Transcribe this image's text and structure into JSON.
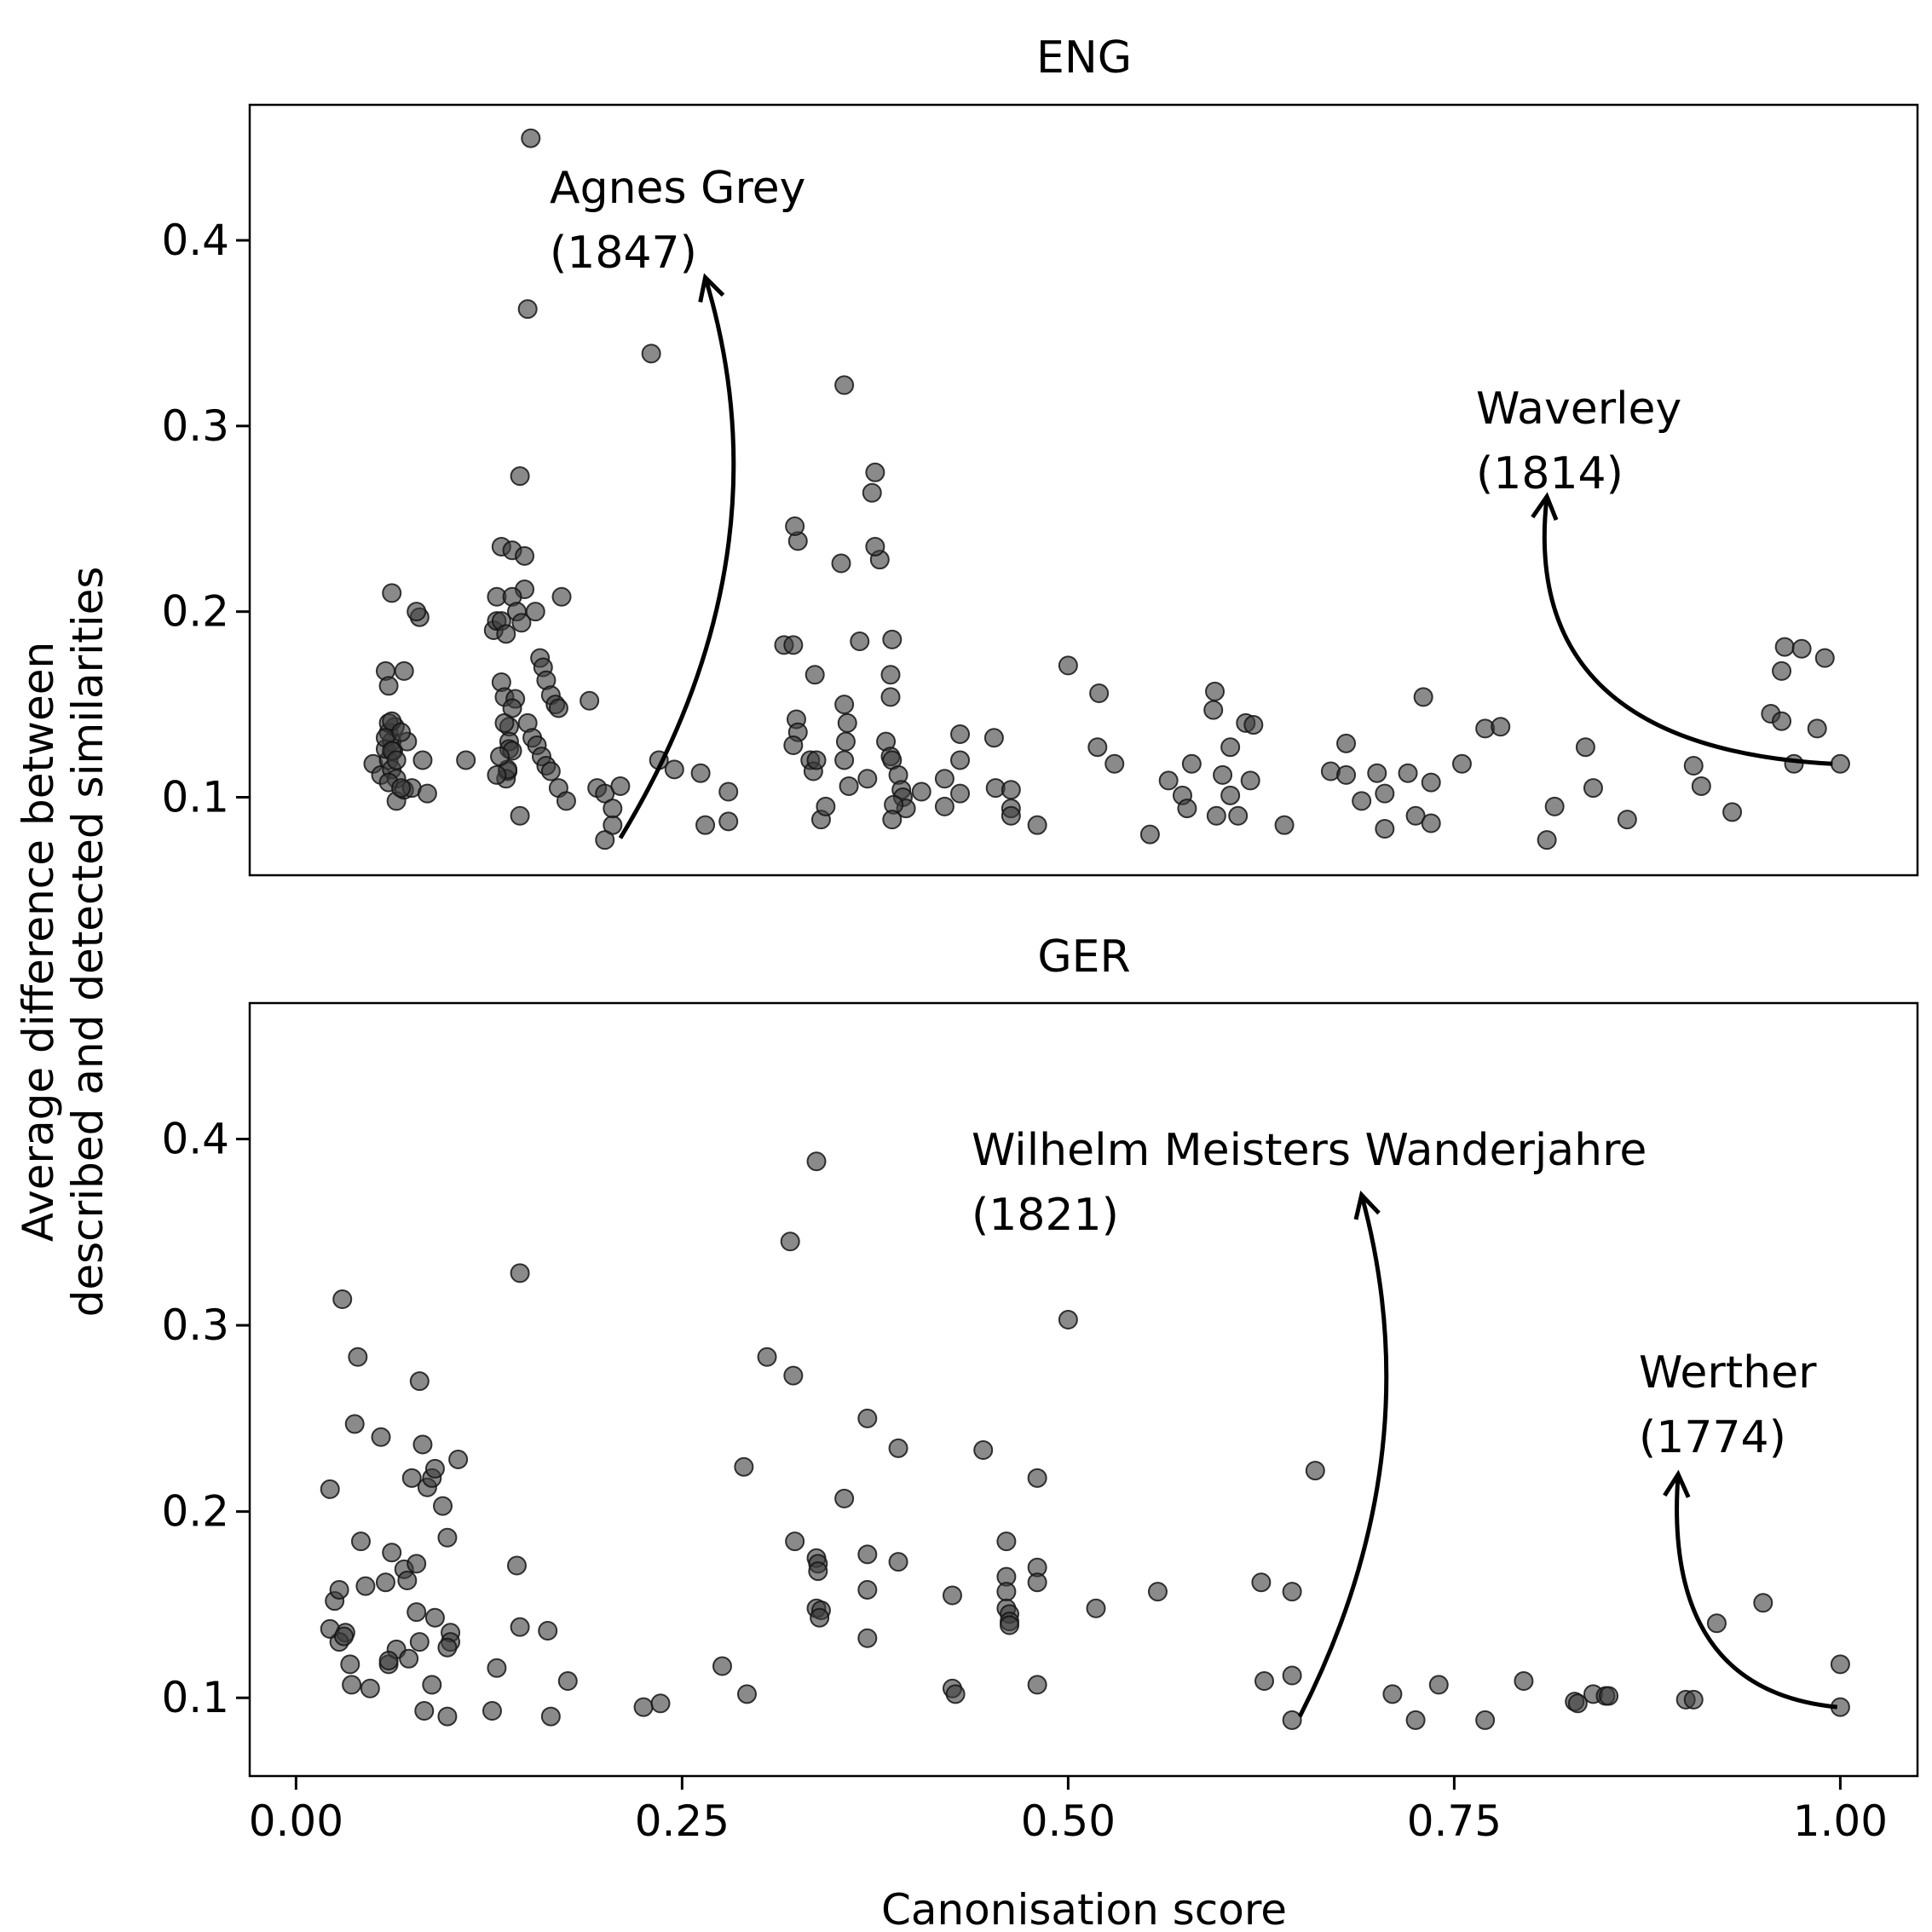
{
  "chart_data": [
    {
      "type": "scatter",
      "title": "ENG",
      "xlabel": "Canonisation score",
      "ylabel": [
        "Average difference between",
        "described and detected similarities"
      ],
      "xlim": [
        -0.03,
        1.05
      ],
      "ylim": [
        0.058,
        0.473
      ],
      "yticks": [
        0.1,
        0.2,
        0.3,
        0.4
      ],
      "ytick_labels": [
        "0.1",
        "0.2",
        "0.3",
        "0.4"
      ],
      "grid": false,
      "annotations": [
        {
          "lines": [
            "Agnes Grey",
            "(1847)"
          ],
          "point_x": 0.21,
          "point_y": 0.078,
          "arrow_to_x": 0.265,
          "arrow_to_y": 0.38
        },
        {
          "lines": [
            "Waverley",
            "(1814)"
          ],
          "point_x": 0.995,
          "point_y": 0.118,
          "arrow_to_x": 0.81,
          "arrow_to_y": 0.262
        }
      ],
      "x": [
        0.05,
        0.055,
        0.06,
        0.058,
        0.062,
        0.06,
        0.064,
        0.06,
        0.062,
        0.058,
        0.063,
        0.062,
        0.065,
        0.06,
        0.058,
        0.062,
        0.07,
        0.065,
        0.07,
        0.075,
        0.072,
        0.068,
        0.08,
        0.078,
        0.082,
        0.085,
        0.06,
        0.062,
        0.065,
        0.068,
        0.11,
        0.128,
        0.13,
        0.133,
        0.135,
        0.138,
        0.138,
        0.137,
        0.138,
        0.136,
        0.14,
        0.137,
        0.142,
        0.135,
        0.132,
        0.13,
        0.133,
        0.14,
        0.145,
        0.148,
        0.15,
        0.152,
        0.155,
        0.158,
        0.16,
        0.162,
        0.165,
        0.168,
        0.17,
        0.172,
        0.13,
        0.133,
        0.136,
        0.14,
        0.143,
        0.146,
        0.148,
        0.15,
        0.153,
        0.156,
        0.159,
        0.162,
        0.165,
        0.17,
        0.175,
        0.145,
        0.14,
        0.19,
        0.195,
        0.2,
        0.205,
        0.21,
        0.205,
        0.2,
        0.23,
        0.235,
        0.245,
        0.262,
        0.265,
        0.28,
        0.28,
        0.316,
        0.322,
        0.325,
        0.323,
        0.324,
        0.325,
        0.322,
        0.333,
        0.335,
        0.337,
        0.336,
        0.34,
        0.343,
        0.355,
        0.353,
        0.355,
        0.357,
        0.356,
        0.355,
        0.358,
        0.365,
        0.37,
        0.375,
        0.373,
        0.378,
        0.375,
        0.382,
        0.386,
        0.385,
        0.385,
        0.385,
        0.386,
        0.39,
        0.392,
        0.393,
        0.395,
        0.387,
        0.386,
        0.405,
        0.42,
        0.42,
        0.43,
        0.43,
        0.43,
        0.452,
        0.453,
        0.463,
        0.463,
        0.463,
        0.48,
        0.5,
        0.519,
        0.52,
        0.53,
        0.553,
        0.565,
        0.574,
        0.577,
        0.58,
        0.594,
        0.595,
        0.596,
        0.6,
        0.605,
        0.605,
        0.61,
        0.615,
        0.618,
        0.62,
        0.64,
        0.67,
        0.68,
        0.68,
        0.69,
        0.7,
        0.705,
        0.705,
        0.72,
        0.725,
        0.73,
        0.735,
        0.735,
        0.755,
        0.77,
        0.78,
        0.81,
        0.815,
        0.835,
        0.84,
        0.862,
        0.905,
        0.91,
        0.93,
        0.955,
        0.962,
        0.962,
        0.964,
        0.97,
        0.975,
        0.985,
        0.99,
        1.0
      ],
      "y": [
        0.118,
        0.112,
        0.12,
        0.126,
        0.13,
        0.135,
        0.138,
        0.14,
        0.141,
        0.132,
        0.125,
        0.115,
        0.11,
        0.108,
        0.168,
        0.21,
        0.168,
        0.098,
        0.104,
        0.105,
        0.13,
        0.105,
        0.197,
        0.2,
        0.12,
        0.102,
        0.16,
        0.125,
        0.12,
        0.135,
        0.12,
        0.19,
        0.195,
        0.162,
        0.154,
        0.138,
        0.13,
        0.114,
        0.126,
        0.11,
        0.125,
        0.115,
        0.153,
        0.14,
        0.122,
        0.112,
        0.235,
        0.233,
        0.273,
        0.212,
        0.363,
        0.455,
        0.2,
        0.175,
        0.17,
        0.163,
        0.155,
        0.15,
        0.148,
        0.208,
        0.208,
        0.195,
        0.188,
        0.208,
        0.2,
        0.194,
        0.23,
        0.14,
        0.132,
        0.128,
        0.122,
        0.117,
        0.114,
        0.105,
        0.098,
        0.09,
        0.148,
        0.152,
        0.105,
        0.102,
        0.085,
        0.106,
        0.094,
        0.077,
        0.339,
        0.12,
        0.115,
        0.113,
        0.085,
        0.103,
        0.087,
        0.182,
        0.182,
        0.238,
        0.246,
        0.142,
        0.135,
        0.128,
        0.12,
        0.114,
        0.12,
        0.166,
        0.088,
        0.095,
        0.322,
        0.226,
        0.15,
        0.14,
        0.13,
        0.12,
        0.106,
        0.184,
        0.11,
        0.275,
        0.264,
        0.228,
        0.235,
        0.13,
        0.185,
        0.166,
        0.154,
        0.122,
        0.12,
        0.112,
        0.104,
        0.1,
        0.094,
        0.096,
        0.088,
        0.103,
        0.11,
        0.095,
        0.134,
        0.12,
        0.102,
        0.132,
        0.105,
        0.104,
        0.094,
        0.09,
        0.085,
        0.171,
        0.127,
        0.156,
        0.118,
        0.08,
        0.109,
        0.101,
        0.094,
        0.118,
        0.147,
        0.157,
        0.09,
        0.112,
        0.101,
        0.127,
        0.09,
        0.14,
        0.109,
        0.139,
        0.085,
        0.114,
        0.112,
        0.129,
        0.098,
        0.113,
        0.102,
        0.083,
        0.113,
        0.09,
        0.154,
        0.108,
        0.086,
        0.118,
        0.137,
        0.138,
        0.077,
        0.095,
        0.127,
        0.105,
        0.088,
        0.117,
        0.106,
        0.092,
        0.145,
        0.168,
        0.141,
        0.181,
        0.118,
        0.18,
        0.137,
        0.175,
        0.118
      ]
    },
    {
      "type": "scatter",
      "title": "GER",
      "xlabel": "Canonisation score",
      "xlim": [
        -0.03,
        1.05
      ],
      "ylim": [
        0.058,
        0.473
      ],
      "xticks": [
        0.0,
        0.25,
        0.5,
        0.75,
        1.0
      ],
      "xtick_labels": [
        "0.00",
        "0.25",
        "0.50",
        "0.75",
        "1.00"
      ],
      "yticks": [
        0.1,
        0.2,
        0.3,
        0.4
      ],
      "ytick_labels": [
        "0.1",
        "0.2",
        "0.3",
        "0.4"
      ],
      "grid": false,
      "annotations": [
        {
          "lines": [
            "Wilhelm Meisters Wanderjahre",
            "(1821)"
          ],
          "point_x": 0.65,
          "point_y": 0.09,
          "arrow_to_x": 0.69,
          "arrow_to_y": 0.37
        },
        {
          "lines": [
            "Werther",
            "(1774)"
          ],
          "point_x": 0.998,
          "point_y": 0.095,
          "arrow_to_x": 0.895,
          "arrow_to_y": 0.22
        }
      ],
      "x": [
        0.022,
        0.025,
        0.028,
        0.03,
        0.032,
        0.035,
        0.038,
        0.04,
        0.042,
        0.045,
        0.048,
        0.028,
        0.022,
        0.031,
        0.036,
        0.055,
        0.058,
        0.06,
        0.062,
        0.065,
        0.07,
        0.072,
        0.075,
        0.078,
        0.08,
        0.082,
        0.085,
        0.088,
        0.09,
        0.095,
        0.098,
        0.1,
        0.1,
        0.105,
        0.078,
        0.073,
        0.09,
        0.098,
        0.08,
        0.06,
        0.088,
        0.098,
        0.083,
        0.127,
        0.13,
        0.145,
        0.143,
        0.145,
        0.165,
        0.163,
        0.176,
        0.225,
        0.236,
        0.276,
        0.29,
        0.292,
        0.305,
        0.32,
        0.322,
        0.323,
        0.337,
        0.337,
        0.338,
        0.338,
        0.337,
        0.34,
        0.339,
        0.355,
        0.37,
        0.37,
        0.37,
        0.37,
        0.39,
        0.39,
        0.425,
        0.425,
        0.427,
        0.445,
        0.46,
        0.46,
        0.46,
        0.46,
        0.462,
        0.462,
        0.462,
        0.48,
        0.48,
        0.48,
        0.48,
        0.5,
        0.518,
        0.558,
        0.625,
        0.627,
        0.645,
        0.645,
        0.645,
        0.66,
        0.71,
        0.725,
        0.74,
        0.77,
        0.795,
        0.828,
        0.83,
        0.84,
        0.848,
        0.85,
        0.9,
        0.905,
        0.92,
        0.95,
        1.0,
        1.0
      ],
      "y": [
        0.212,
        0.152,
        0.158,
        0.314,
        0.135,
        0.118,
        0.247,
        0.283,
        0.184,
        0.16,
        0.105,
        0.13,
        0.137,
        0.133,
        0.107,
        0.24,
        0.162,
        0.118,
        0.178,
        0.126,
        0.169,
        0.163,
        0.218,
        0.146,
        0.27,
        0.236,
        0.213,
        0.218,
        0.223,
        0.203,
        0.186,
        0.135,
        0.13,
        0.228,
        0.172,
        0.121,
        0.143,
        0.127,
        0.13,
        0.12,
        0.107,
        0.09,
        0.093,
        0.093,
        0.116,
        0.328,
        0.171,
        0.138,
        0.09,
        0.136,
        0.109,
        0.095,
        0.097,
        0.117,
        0.224,
        0.102,
        0.283,
        0.345,
        0.273,
        0.184,
        0.388,
        0.175,
        0.172,
        0.168,
        0.148,
        0.147,
        0.143,
        0.207,
        0.25,
        0.177,
        0.158,
        0.132,
        0.234,
        0.173,
        0.155,
        0.105,
        0.102,
        0.233,
        0.184,
        0.165,
        0.157,
        0.148,
        0.145,
        0.141,
        0.139,
        0.218,
        0.17,
        0.162,
        0.107,
        0.303,
        0.148,
        0.157,
        0.162,
        0.109,
        0.112,
        0.157,
        0.088,
        0.222,
        0.102,
        0.088,
        0.107,
        0.088,
        0.109,
        0.098,
        0.097,
        0.102,
        0.101,
        0.101,
        0.099,
        0.099,
        0.14,
        0.151,
        0.118,
        0.095
      ]
    }
  ]
}
